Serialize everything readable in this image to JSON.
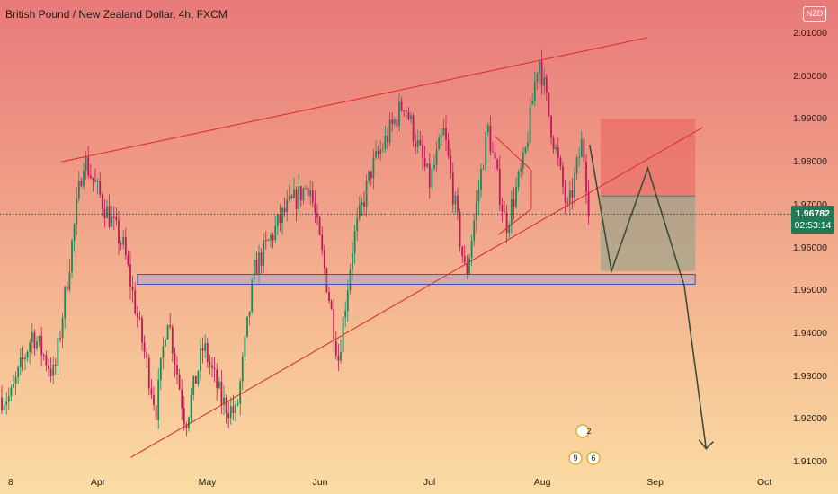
{
  "title": "British Pound / New Zealand Dollar, 4h, FXCM",
  "currency_badge": "NZD",
  "current_price": "1.96782",
  "countdown": "02:53:14",
  "colors": {
    "up": "#1b8a5a",
    "down": "#c2185b",
    "trendline": "#e03030",
    "projection": "#3d4d3d",
    "zone_border": "#3355cc"
  },
  "chart_data": {
    "type": "candlestick",
    "title": "British Pound / New Zealand Dollar, 4h, FXCM",
    "y_ticks": [
      "2.01000",
      "2.00000",
      "1.99000",
      "1.98000",
      "1.97000",
      "1.96000",
      "1.95000",
      "1.94000",
      "1.93000",
      "1.92000",
      "1.91000"
    ],
    "ylim": [
      1.908,
      2.013
    ],
    "x_ticks": [
      "8",
      "Apr",
      "May",
      "Jun",
      "Jul",
      "Aug",
      "Sep",
      "Oct"
    ],
    "price_path": [
      {
        "date": "Mar 8",
        "price": 1.925
      },
      {
        "date": "Mar 14",
        "price": 1.94
      },
      {
        "date": "Mar 20",
        "price": 1.93
      },
      {
        "date": "Mar 28",
        "price": 1.981
      },
      {
        "date": "Apr 2",
        "price": 1.971
      },
      {
        "date": "Apr 8",
        "price": 1.96
      },
      {
        "date": "Apr 15",
        "price": 1.93
      },
      {
        "date": "Apr 17",
        "price": 1.922
      },
      {
        "date": "Apr 20",
        "price": 1.945
      },
      {
        "date": "Apr 25",
        "price": 1.919
      },
      {
        "date": "Apr 30",
        "price": 1.937
      },
      {
        "date": "May 5",
        "price": 1.924
      },
      {
        "date": "May 9",
        "price": 1.921
      },
      {
        "date": "May 14",
        "price": 1.955
      },
      {
        "date": "May 22",
        "price": 1.968
      },
      {
        "date": "May 29",
        "price": 1.975
      },
      {
        "date": "Jun 3",
        "price": 1.951
      },
      {
        "date": "Jun 6",
        "price": 1.934
      },
      {
        "date": "Jun 10",
        "price": 1.961
      },
      {
        "date": "Jun 15",
        "price": 1.978
      },
      {
        "date": "Jun 24",
        "price": 1.994
      },
      {
        "date": "Jul 1",
        "price": 1.975
      },
      {
        "date": "Jul 5",
        "price": 1.987
      },
      {
        "date": "Jul 11",
        "price": 1.953
      },
      {
        "date": "Jul 17",
        "price": 1.988
      },
      {
        "date": "Jul 22",
        "price": 1.965
      },
      {
        "date": "Jul 27",
        "price": 1.98
      },
      {
        "date": "Jul 31",
        "price": 2.005
      },
      {
        "date": "Aug 3",
        "price": 1.99
      },
      {
        "date": "Aug 8",
        "price": 1.968
      },
      {
        "date": "Aug 12",
        "price": 1.985
      },
      {
        "date": "Aug 14",
        "price": 1.9678
      }
    ],
    "trendlines": [
      {
        "name": "upper",
        "from": {
          "date": "Mar 22",
          "price": 1.98
        },
        "to": {
          "date": "Aug 30",
          "price": 2.009
        }
      },
      {
        "name": "lower",
        "from": {
          "date": "Apr 10",
          "price": 1.911
        },
        "to": {
          "date": "Sep 14",
          "price": 1.988
        }
      },
      {
        "name": "flag-top",
        "from": {
          "date": "Jul 19",
          "price": 1.986
        },
        "to": {
          "date": "Jul 29",
          "price": 1.978
        }
      },
      {
        "name": "flag-bottom",
        "from": {
          "date": "Jul 20",
          "price": 1.963
        },
        "to": {
          "date": "Jul 29",
          "price": 1.969
        }
      }
    ],
    "support_zone": {
      "date_from": "Mar 29",
      "date_to": "Sep 12",
      "price_top": 1.9537,
      "price_bottom": 1.9514
    },
    "position": {
      "date_from": "Aug 17",
      "date_to": "Sep 12",
      "stop_top": 1.99,
      "entry": 1.972,
      "target": 1.9545
    },
    "projection": [
      {
        "date": "Aug 14",
        "price": 1.984
      },
      {
        "date": "Aug 20",
        "price": 1.9545
      },
      {
        "date": "Aug 30",
        "price": 1.9785
      },
      {
        "date": "Sep 9",
        "price": 1.951
      },
      {
        "date": "Sep 15",
        "price": 1.913
      }
    ],
    "current_price_line": 1.9678,
    "markers": [
      "2",
      "9",
      "6"
    ]
  }
}
